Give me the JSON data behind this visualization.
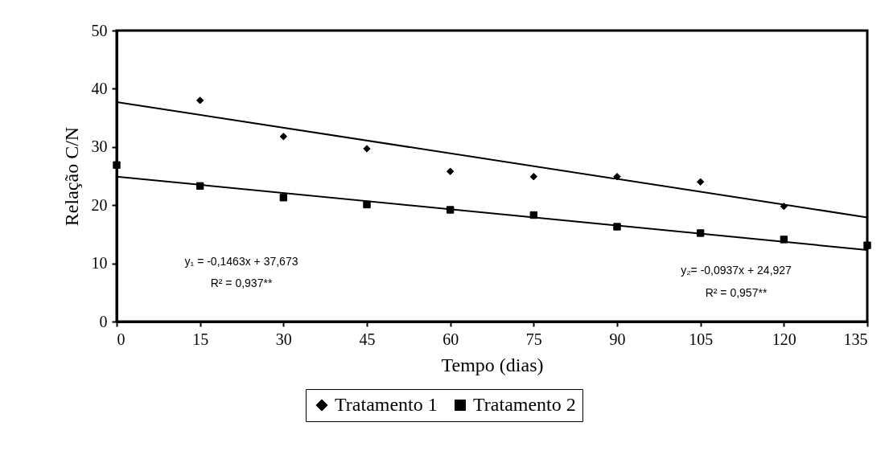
{
  "chart_data": {
    "type": "scatter",
    "xlabel": "Tempo (dias)",
    "ylabel": "Relação C/N",
    "x": [
      0,
      15,
      30,
      45,
      60,
      75,
      90,
      105,
      120,
      135
    ],
    "series": [
      {
        "name": "Tratamento 1",
        "color": "#000000",
        "marker": "diamond",
        "x": [
          15,
          30,
          45,
          60,
          75,
          90,
          105,
          120
        ],
        "values": [
          38.0,
          31.8,
          29.7,
          25.8,
          24.9,
          24.9,
          24.0,
          19.8
        ]
      },
      {
        "name": "Tratamento 2",
        "color": "#000000",
        "marker": "square",
        "values": [
          26.9,
          23.3,
          21.3,
          20.1,
          19.2,
          18.3,
          16.3,
          15.2,
          14.1,
          13.1
        ]
      },
      {
        "type": "line",
        "color": "#000000",
        "marker": "none",
        "x": [
          0,
          135
        ],
        "values": [
          37.7,
          17.9
        ]
      },
      {
        "type": "line",
        "color": "#000000",
        "marker": "none",
        "x": [
          0,
          135
        ],
        "values": [
          24.9,
          12.3
        ]
      }
    ],
    "xlim": [
      0,
      135
    ],
    "xticks": [
      0,
      15,
      30,
      45,
      60,
      75,
      90,
      105,
      120,
      135
    ],
    "ylim": [
      0,
      50
    ],
    "yticks": [
      0,
      10,
      20,
      30,
      40,
      50
    ],
    "legend": "bottom",
    "annotations": [
      "y₁ = -0,1463x + 37,673",
      "R² = 0,937**",
      "y₂= -0,0937x + 24,927",
      "R² = 0,957**"
    ]
  }
}
